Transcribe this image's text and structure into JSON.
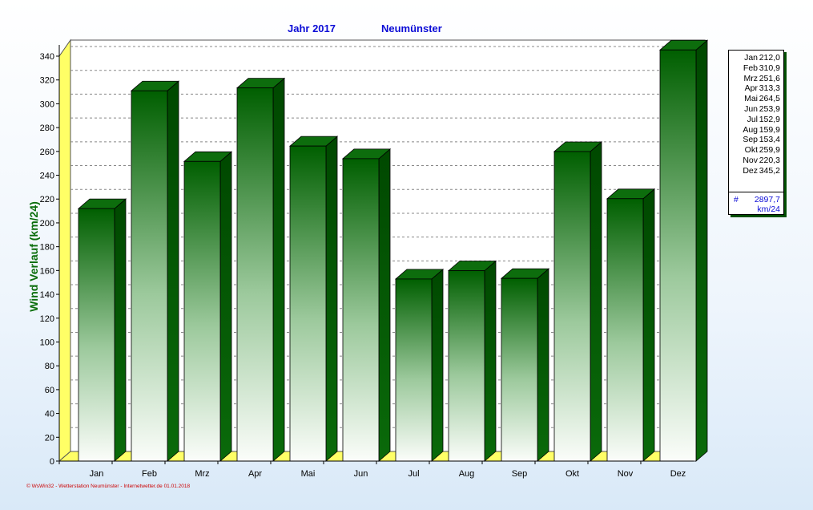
{
  "header": {
    "year": "Jahr  2017",
    "station": "Neumünster"
  },
  "chart_data": {
    "type": "bar",
    "title": "Jahr  2017",
    "subtitle": "Neumünster",
    "ylabel": "Wind Verlauf  (km/24)",
    "xlabel": "",
    "categories": [
      "Jan",
      "Feb",
      "Mrz",
      "Apr",
      "Mai",
      "Jun",
      "Jul",
      "Aug",
      "Sep",
      "Okt",
      "Nov",
      "Dez"
    ],
    "series": [
      {
        "values": [
          212.0,
          310.9,
          251.6,
          313.3,
          264.5,
          253.9,
          152.9,
          159.9,
          153.4,
          259.9,
          220.3,
          345.2
        ]
      }
    ],
    "ylim": [
      0,
      340
    ],
    "yticks": [
      0,
      20,
      40,
      60,
      80,
      100,
      120,
      140,
      160,
      180,
      200,
      220,
      240,
      260,
      280,
      300,
      320,
      340
    ],
    "grid": true,
    "legend_position": "right",
    "colors": {
      "bar_dark": "#006400",
      "bar_light": "#f5faf3",
      "floor": "#ffff66",
      "title": "#0b0bd6",
      "ylabel": "#0a6d0a"
    }
  },
  "legend": {
    "rows": [
      {
        "month": "Jan",
        "value": "212,0"
      },
      {
        "month": "Feb",
        "value": "310,9"
      },
      {
        "month": "Mrz",
        "value": "251,6"
      },
      {
        "month": "Apr",
        "value": "313,3"
      },
      {
        "month": "Mai",
        "value": "264,5"
      },
      {
        "month": "Jun",
        "value": "253,9"
      },
      {
        "month": "Jul",
        "value": "152,9"
      },
      {
        "month": "Aug",
        "value": "159,9"
      },
      {
        "month": "Sep",
        "value": "153,4"
      },
      {
        "month": "Okt",
        "value": "259,9"
      },
      {
        "month": "Nov",
        "value": "220,3"
      },
      {
        "month": "Dez",
        "value": "345,2"
      }
    ],
    "total_symbol": "#",
    "total": "2897,7",
    "unit": "km/24"
  },
  "footer": "© WsWin32 - Wetterstation Neumünster - Internetwetter.de  01.01.2018"
}
